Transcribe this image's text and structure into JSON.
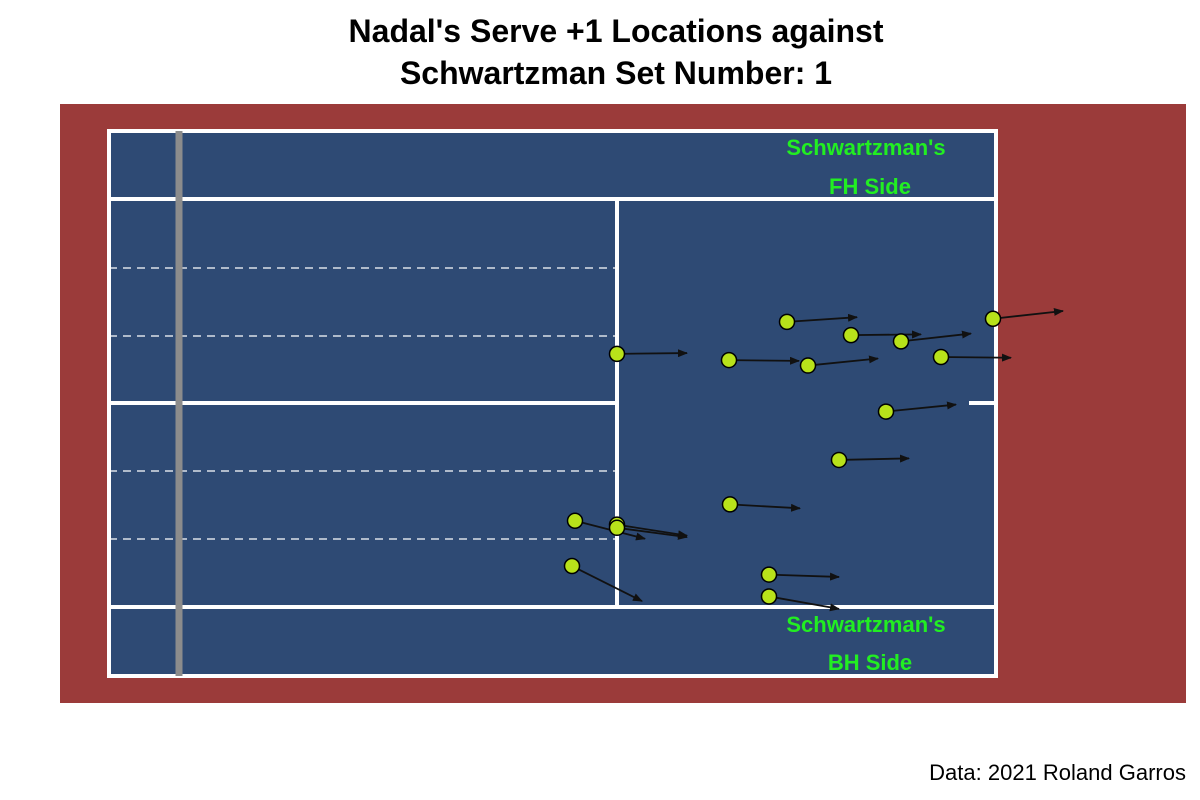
{
  "chart_data": {
    "type": "scatter",
    "title_lines": [
      "Nadal's Serve +1 Locations against",
      "Schwartzman Set Number: 1"
    ],
    "caption": "Data: 2021 Roland Garros",
    "labels": {
      "fh_side_line1": "Schwartzman's",
      "fh_side_line2": "FH Side",
      "bh_side_line1": "Schwartzman's",
      "bh_side_line2": "BH Side"
    },
    "x_units": "feet from net (negative = Nadal's side)",
    "y_units": "feet from center line",
    "points": [
      {
        "x": 17.0,
        "y": 10.4,
        "x_end": 24.0,
        "y_end": 11.0
      },
      {
        "x": 23.4,
        "y": 8.7,
        "x_end": 30.4,
        "y_end": 8.8
      },
      {
        "x": 28.4,
        "y": 7.9,
        "x_end": 35.4,
        "y_end": 8.9
      },
      {
        "x": 37.6,
        "y": 10.8,
        "x_end": 44.6,
        "y_end": 11.8
      },
      {
        "x": 11.2,
        "y": 5.5,
        "x_end": 18.2,
        "y_end": 5.4
      },
      {
        "x": 19.1,
        "y": 4.8,
        "x_end": 26.1,
        "y_end": 5.7
      },
      {
        "x": 0.0,
        "y": 6.3,
        "x_end": 7.0,
        "y_end": 6.4
      },
      {
        "x": 32.4,
        "y": 5.9,
        "x_end": 39.4,
        "y_end": 5.8
      },
      {
        "x": 26.9,
        "y": -1.1,
        "x_end": 33.9,
        "y_end": -0.2
      },
      {
        "x": 22.2,
        "y": -7.3,
        "x_end": 29.2,
        "y_end": -7.1
      },
      {
        "x": 11.3,
        "y": -13.0,
        "x_end": 18.3,
        "y_end": -13.5
      },
      {
        "x": -4.2,
        "y": -15.1,
        "x_end": 2.8,
        "y_end": -17.4
      },
      {
        "x": 0.0,
        "y": -15.6,
        "x_end": 7.0,
        "y_end": -17.0
      },
      {
        "x": 0.0,
        "y": -16.0,
        "x_end": 7.0,
        "y_end": -17.2
      },
      {
        "x": -4.5,
        "y": -20.9,
        "x_end": 2.5,
        "y_end": -25.4
      },
      {
        "x": 15.2,
        "y": -22.0,
        "x_end": 22.2,
        "y_end": -22.3
      },
      {
        "x": 15.2,
        "y": -24.8,
        "x_end": 22.2,
        "y_end": -26.4
      }
    ],
    "colors": {
      "surround": "#9b3b3a",
      "court": "#2e4a74",
      "lines": "#ffffff",
      "net": "#8c8c8c",
      "point_fill": "#b8e21a",
      "point_stroke": "#000000",
      "arrow": "#000000",
      "side_label": "#22ee22"
    }
  }
}
